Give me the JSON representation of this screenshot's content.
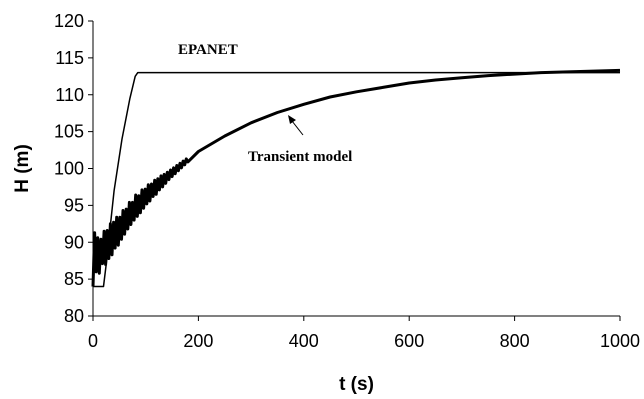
{
  "chart_data": {
    "type": "line",
    "title": "",
    "xlabel": "t (s)",
    "ylabel": "H (m)",
    "xlim": [
      0,
      1000
    ],
    "ylim": [
      80,
      120
    ],
    "xticks": [
      0,
      200,
      400,
      600,
      800,
      1000
    ],
    "yticks": [
      80,
      85,
      90,
      95,
      100,
      105,
      110,
      115,
      120
    ],
    "grid": false,
    "legend": "none",
    "series": [
      {
        "name": "EPANET",
        "color": "#000000",
        "x": [
          0,
          20,
          25,
          40,
          55,
          70,
          80,
          85,
          1000
        ],
        "y": [
          84,
          84,
          87,
          97,
          104,
          109.5,
          112.5,
          113,
          113
        ]
      },
      {
        "name": "Transient model",
        "color": "#000000",
        "x": [
          0,
          3,
          6,
          9,
          12,
          15,
          18,
          21,
          24,
          27,
          30,
          33,
          36,
          39,
          42,
          45,
          48,
          51,
          54,
          57,
          60,
          63,
          66,
          69,
          72,
          75,
          78,
          81,
          84,
          87,
          90,
          93,
          96,
          99,
          102,
          105,
          108,
          111,
          114,
          117,
          120,
          123,
          126,
          129,
          132,
          135,
          138,
          141,
          144,
          147,
          150,
          153,
          156,
          159,
          162,
          165,
          168,
          171,
          174,
          177,
          180,
          200,
          250,
          300,
          350,
          400,
          450,
          500,
          550,
          600,
          650,
          700,
          750,
          800,
          850,
          900,
          950,
          1000
        ],
        "y": [
          84.0,
          91.3,
          86.0,
          90.6,
          85.8,
          90.4,
          87.1,
          91.5,
          87.0,
          91.6,
          87.8,
          92.5,
          88.3,
          92.7,
          89.2,
          93.4,
          89.6,
          93.4,
          90.4,
          94.3,
          91.1,
          94.5,
          91.8,
          95.4,
          92.4,
          95.4,
          93.0,
          96.4,
          93.5,
          96.3,
          94.0,
          97.1,
          94.6,
          97.2,
          95.2,
          97.8,
          95.6,
          97.9,
          96.2,
          98.4,
          96.5,
          98.6,
          97.1,
          99.0,
          97.5,
          99.2,
          98.0,
          99.5,
          98.5,
          99.8,
          98.9,
          100.1,
          99.3,
          100.4,
          99.7,
          100.7,
          100.1,
          101.0,
          100.5,
          101.3,
          100.9,
          102.3,
          104.4,
          106.2,
          107.6,
          108.7,
          109.7,
          110.4,
          111.0,
          111.6,
          112.0,
          112.3,
          112.6,
          112.8,
          113.0,
          113.1,
          113.2,
          113.3
        ]
      }
    ],
    "annotations": [
      {
        "text": "EPANET",
        "series": "EPANET"
      },
      {
        "text": "Transient model",
        "series": "Transient model"
      }
    ]
  }
}
